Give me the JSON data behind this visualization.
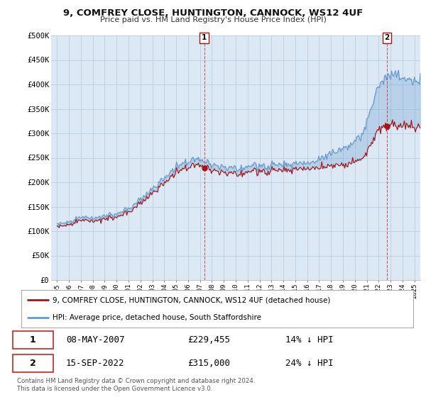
{
  "title": "9, COMFREY CLOSE, HUNTINGTON, CANNOCK, WS12 4UF",
  "subtitle": "Price paid vs. HM Land Registry's House Price Index (HPI)",
  "background_color": "#ffffff",
  "plot_bg_color": "#dce9f5",
  "grid_color": "#b8cfe0",
  "hpi_color": "#6699cc",
  "price_color": "#aa1111",
  "fill_color": "#c5dcf0",
  "ylim": [
    0,
    500000
  ],
  "yticks": [
    0,
    50000,
    100000,
    150000,
    200000,
    250000,
    300000,
    350000,
    400000,
    450000,
    500000
  ],
  "ytick_labels": [
    "£0",
    "£50K",
    "£100K",
    "£150K",
    "£200K",
    "£250K",
    "£300K",
    "£350K",
    "£400K",
    "£450K",
    "£500K"
  ],
  "sale1_date": "08-MAY-2007",
  "sale1_price": 229455,
  "sale1_price_str": "£229,455",
  "sale1_pct": "14% ↓ HPI",
  "sale1_year": 2007.36,
  "sale2_date": "15-SEP-2022",
  "sale2_price": 315000,
  "sale2_price_str": "£315,000",
  "sale2_pct": "24% ↓ HPI",
  "sale2_year": 2022.71,
  "legend_line1": "9, COMFREY CLOSE, HUNTINGTON, CANNOCK, WS12 4UF (detached house)",
  "legend_line2": "HPI: Average price, detached house, South Staffordshire",
  "footer": "Contains HM Land Registry data © Crown copyright and database right 2024.\nThis data is licensed under the Open Government Licence v3.0.",
  "xlim_left": 1995.0,
  "xlim_right": 2025.5
}
